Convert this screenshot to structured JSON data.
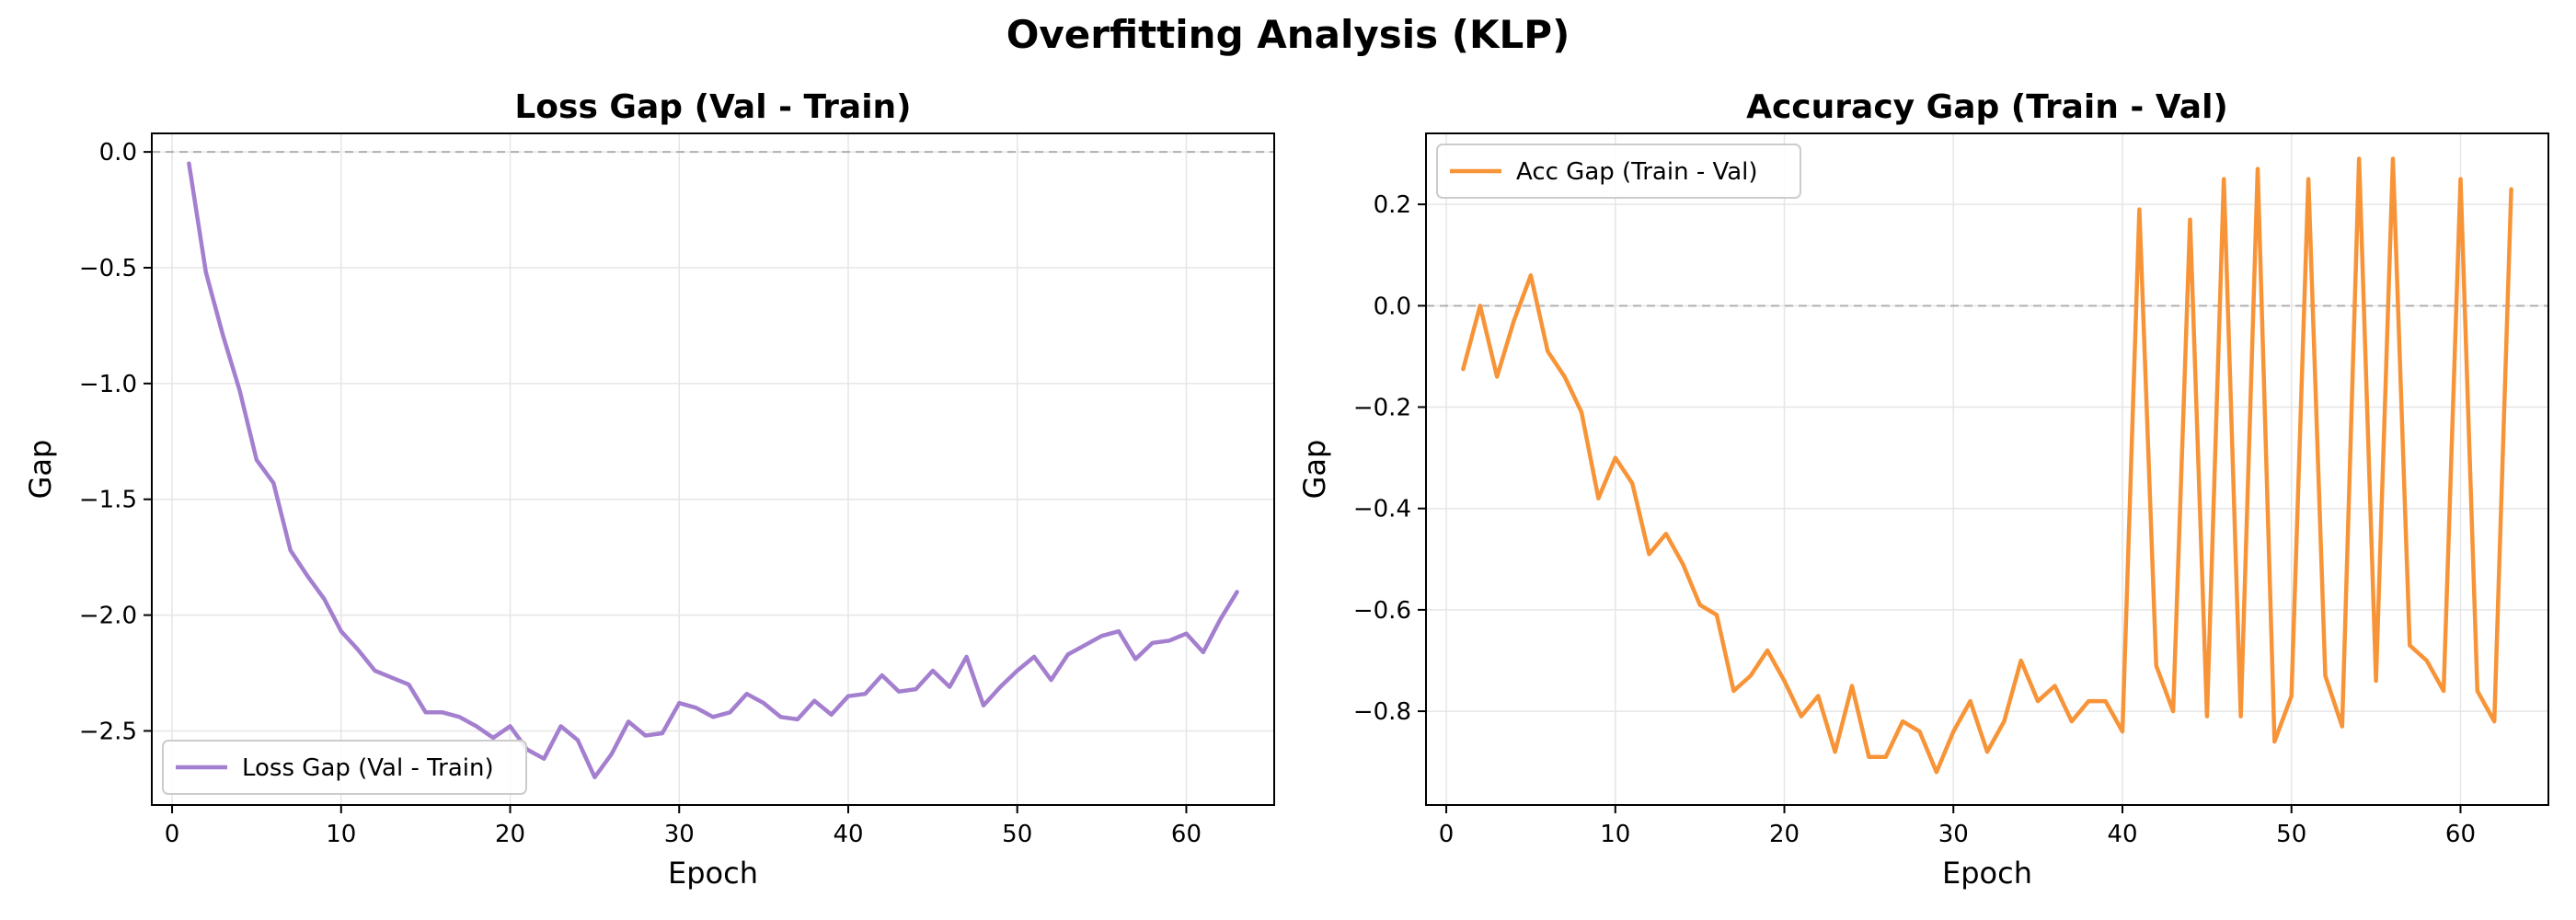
{
  "figure": {
    "title": "Overfitting Analysis (KLP)"
  },
  "colors": {
    "loss_line": "#a47fcf",
    "acc_line": "#f79438",
    "grid": "#e6e6e6",
    "zero_line": "#b0b0b0"
  },
  "chart_data": [
    {
      "type": "line",
      "title": "Loss Gap (Val - Train)",
      "xlabel": "Epoch",
      "ylabel": "Gap",
      "xlim": [
        -1.2,
        65.2
      ],
      "ylim": [
        -2.82,
        0.08
      ],
      "xticks": [
        0,
        10,
        20,
        30,
        40,
        50,
        60
      ],
      "yticks": [
        0.0,
        -0.5,
        -1.0,
        -1.5,
        -2.0,
        -2.5
      ],
      "ytick_labels": [
        "0.0",
        "−0.5",
        "−1.0",
        "−1.5",
        "−2.0",
        "−2.5"
      ],
      "grid": true,
      "zero_line": true,
      "legend_position": "lower-left",
      "series": [
        {
          "name": "Loss Gap (Val - Train)",
          "color": "#a47fcf",
          "x": [
            1,
            2,
            3,
            4,
            5,
            6,
            7,
            8,
            9,
            10,
            11,
            12,
            13,
            14,
            15,
            16,
            17,
            18,
            19,
            20,
            21,
            22,
            23,
            24,
            25,
            26,
            27,
            28,
            29,
            30,
            31,
            32,
            33,
            34,
            35,
            36,
            37,
            38,
            39,
            40,
            41,
            42,
            43,
            44,
            45,
            46,
            47,
            48,
            49,
            50,
            51,
            52,
            53,
            54,
            55,
            56,
            57,
            58,
            59,
            60,
            61,
            62,
            63
          ],
          "y": [
            -0.05,
            -0.52,
            -0.79,
            -1.03,
            -1.33,
            -1.43,
            -1.72,
            -1.83,
            -1.93,
            -2.07,
            -2.15,
            -2.24,
            -2.27,
            -2.3,
            -2.42,
            -2.42,
            -2.44,
            -2.48,
            -2.53,
            -2.48,
            -2.58,
            -2.62,
            -2.48,
            -2.54,
            -2.7,
            -2.6,
            -2.46,
            -2.52,
            -2.51,
            -2.38,
            -2.4,
            -2.44,
            -2.42,
            -2.34,
            -2.38,
            -2.44,
            -2.45,
            -2.37,
            -2.43,
            -2.35,
            -2.34,
            -2.26,
            -2.33,
            -2.32,
            -2.24,
            -2.31,
            -2.18,
            -2.39,
            -2.31,
            -2.24,
            -2.18,
            -2.28,
            -2.17,
            -2.13,
            -2.09,
            -2.07,
            -2.19,
            -2.12,
            -2.11,
            -2.08,
            -2.16,
            -2.02,
            -1.9
          ]
        }
      ]
    },
    {
      "type": "line",
      "title": "Accuracy Gap (Train - Val)",
      "xlabel": "Epoch",
      "ylabel": "Gap",
      "xlim": [
        -1.2,
        65.2
      ],
      "ylim": [
        -0.985,
        0.34
      ],
      "xticks": [
        0,
        10,
        20,
        30,
        40,
        50,
        60
      ],
      "yticks": [
        0.2,
        0.0,
        -0.2,
        -0.4,
        -0.6,
        -0.8
      ],
      "ytick_labels": [
        "0.2",
        "0.0",
        "−0.2",
        "−0.4",
        "−0.6",
        "−0.8"
      ],
      "grid": true,
      "zero_line": true,
      "legend_position": "upper-left",
      "series": [
        {
          "name": "Acc Gap (Train - Val)",
          "color": "#f79438",
          "x": [
            1,
            2,
            3,
            4,
            5,
            6,
            7,
            8,
            9,
            10,
            11,
            12,
            13,
            14,
            15,
            16,
            17,
            18,
            19,
            20,
            21,
            22,
            23,
            24,
            25,
            26,
            27,
            28,
            29,
            30,
            31,
            32,
            33,
            34,
            35,
            36,
            37,
            38,
            39,
            40,
            41,
            42,
            43,
            44,
            45,
            46,
            47,
            48,
            49,
            50,
            51,
            52,
            53,
            54,
            55,
            56,
            57,
            58,
            59,
            60,
            61,
            62,
            63
          ],
          "y": [
            -0.125,
            0.0,
            -0.14,
            -0.03,
            0.06,
            -0.09,
            -0.14,
            -0.21,
            -0.38,
            -0.3,
            -0.35,
            -0.49,
            -0.45,
            -0.51,
            -0.59,
            -0.61,
            -0.76,
            -0.73,
            -0.68,
            -0.74,
            -0.81,
            -0.77,
            -0.88,
            -0.75,
            -0.89,
            -0.89,
            -0.82,
            -0.84,
            -0.92,
            -0.84,
            -0.78,
            -0.88,
            -0.82,
            -0.7,
            -0.78,
            -0.75,
            -0.82,
            -0.78,
            -0.78,
            -0.84,
            0.19,
            -0.71,
            -0.8,
            0.17,
            -0.81,
            0.25,
            -0.81,
            0.27,
            -0.86,
            -0.77,
            0.25,
            -0.73,
            -0.83,
            0.29,
            -0.74,
            0.29,
            -0.67,
            -0.7,
            -0.76,
            0.25,
            -0.76,
            -0.82,
            0.23
          ]
        }
      ]
    }
  ]
}
